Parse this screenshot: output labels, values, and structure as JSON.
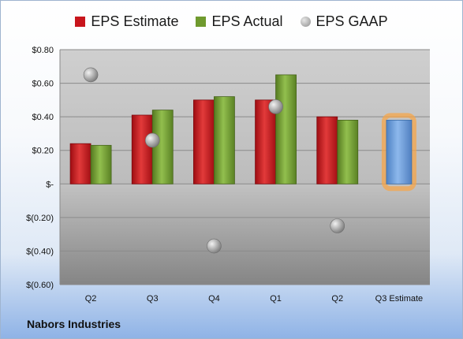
{
  "chart_data": {
    "type": "bar",
    "categories": [
      "Q2",
      "Q3",
      "Q4",
      "Q1",
      "Q2",
      "Q3 Estimate"
    ],
    "series": [
      {
        "name": "EPS Estimate",
        "color": "#c8151c",
        "values": [
          0.24,
          0.41,
          0.5,
          0.5,
          0.4,
          null
        ]
      },
      {
        "name": "EPS Actual",
        "color": "#6f9a2e",
        "values": [
          0.23,
          0.44,
          0.52,
          0.65,
          0.38,
          null
        ]
      },
      {
        "name": "EPS GAAP",
        "color": "#a9a9a9",
        "marker": "circle",
        "values": [
          0.65,
          0.26,
          -0.37,
          0.46,
          -0.25,
          null
        ]
      }
    ],
    "forecast": {
      "category": "Q3 Estimate",
      "value": 0.38,
      "color": "#6a9fdc",
      "highlight": "#f6a54a"
    },
    "ylim": [
      -0.6,
      0.8
    ],
    "yticks": [
      {
        "value": 0.8,
        "label": "$0.80"
      },
      {
        "value": 0.6,
        "label": "$0.60"
      },
      {
        "value": 0.4,
        "label": "$0.40"
      },
      {
        "value": 0.2,
        "label": "$0.20"
      },
      {
        "value": 0,
        "label": "$-"
      },
      {
        "value": -0.2,
        "label": "$(0.20)"
      },
      {
        "value": -0.4,
        "label": "$(0.40)"
      },
      {
        "value": -0.6,
        "label": "$(0.60)"
      }
    ],
    "grid": true,
    "legend_position": "top"
  },
  "footer": {
    "company": "Nabors Industries"
  }
}
